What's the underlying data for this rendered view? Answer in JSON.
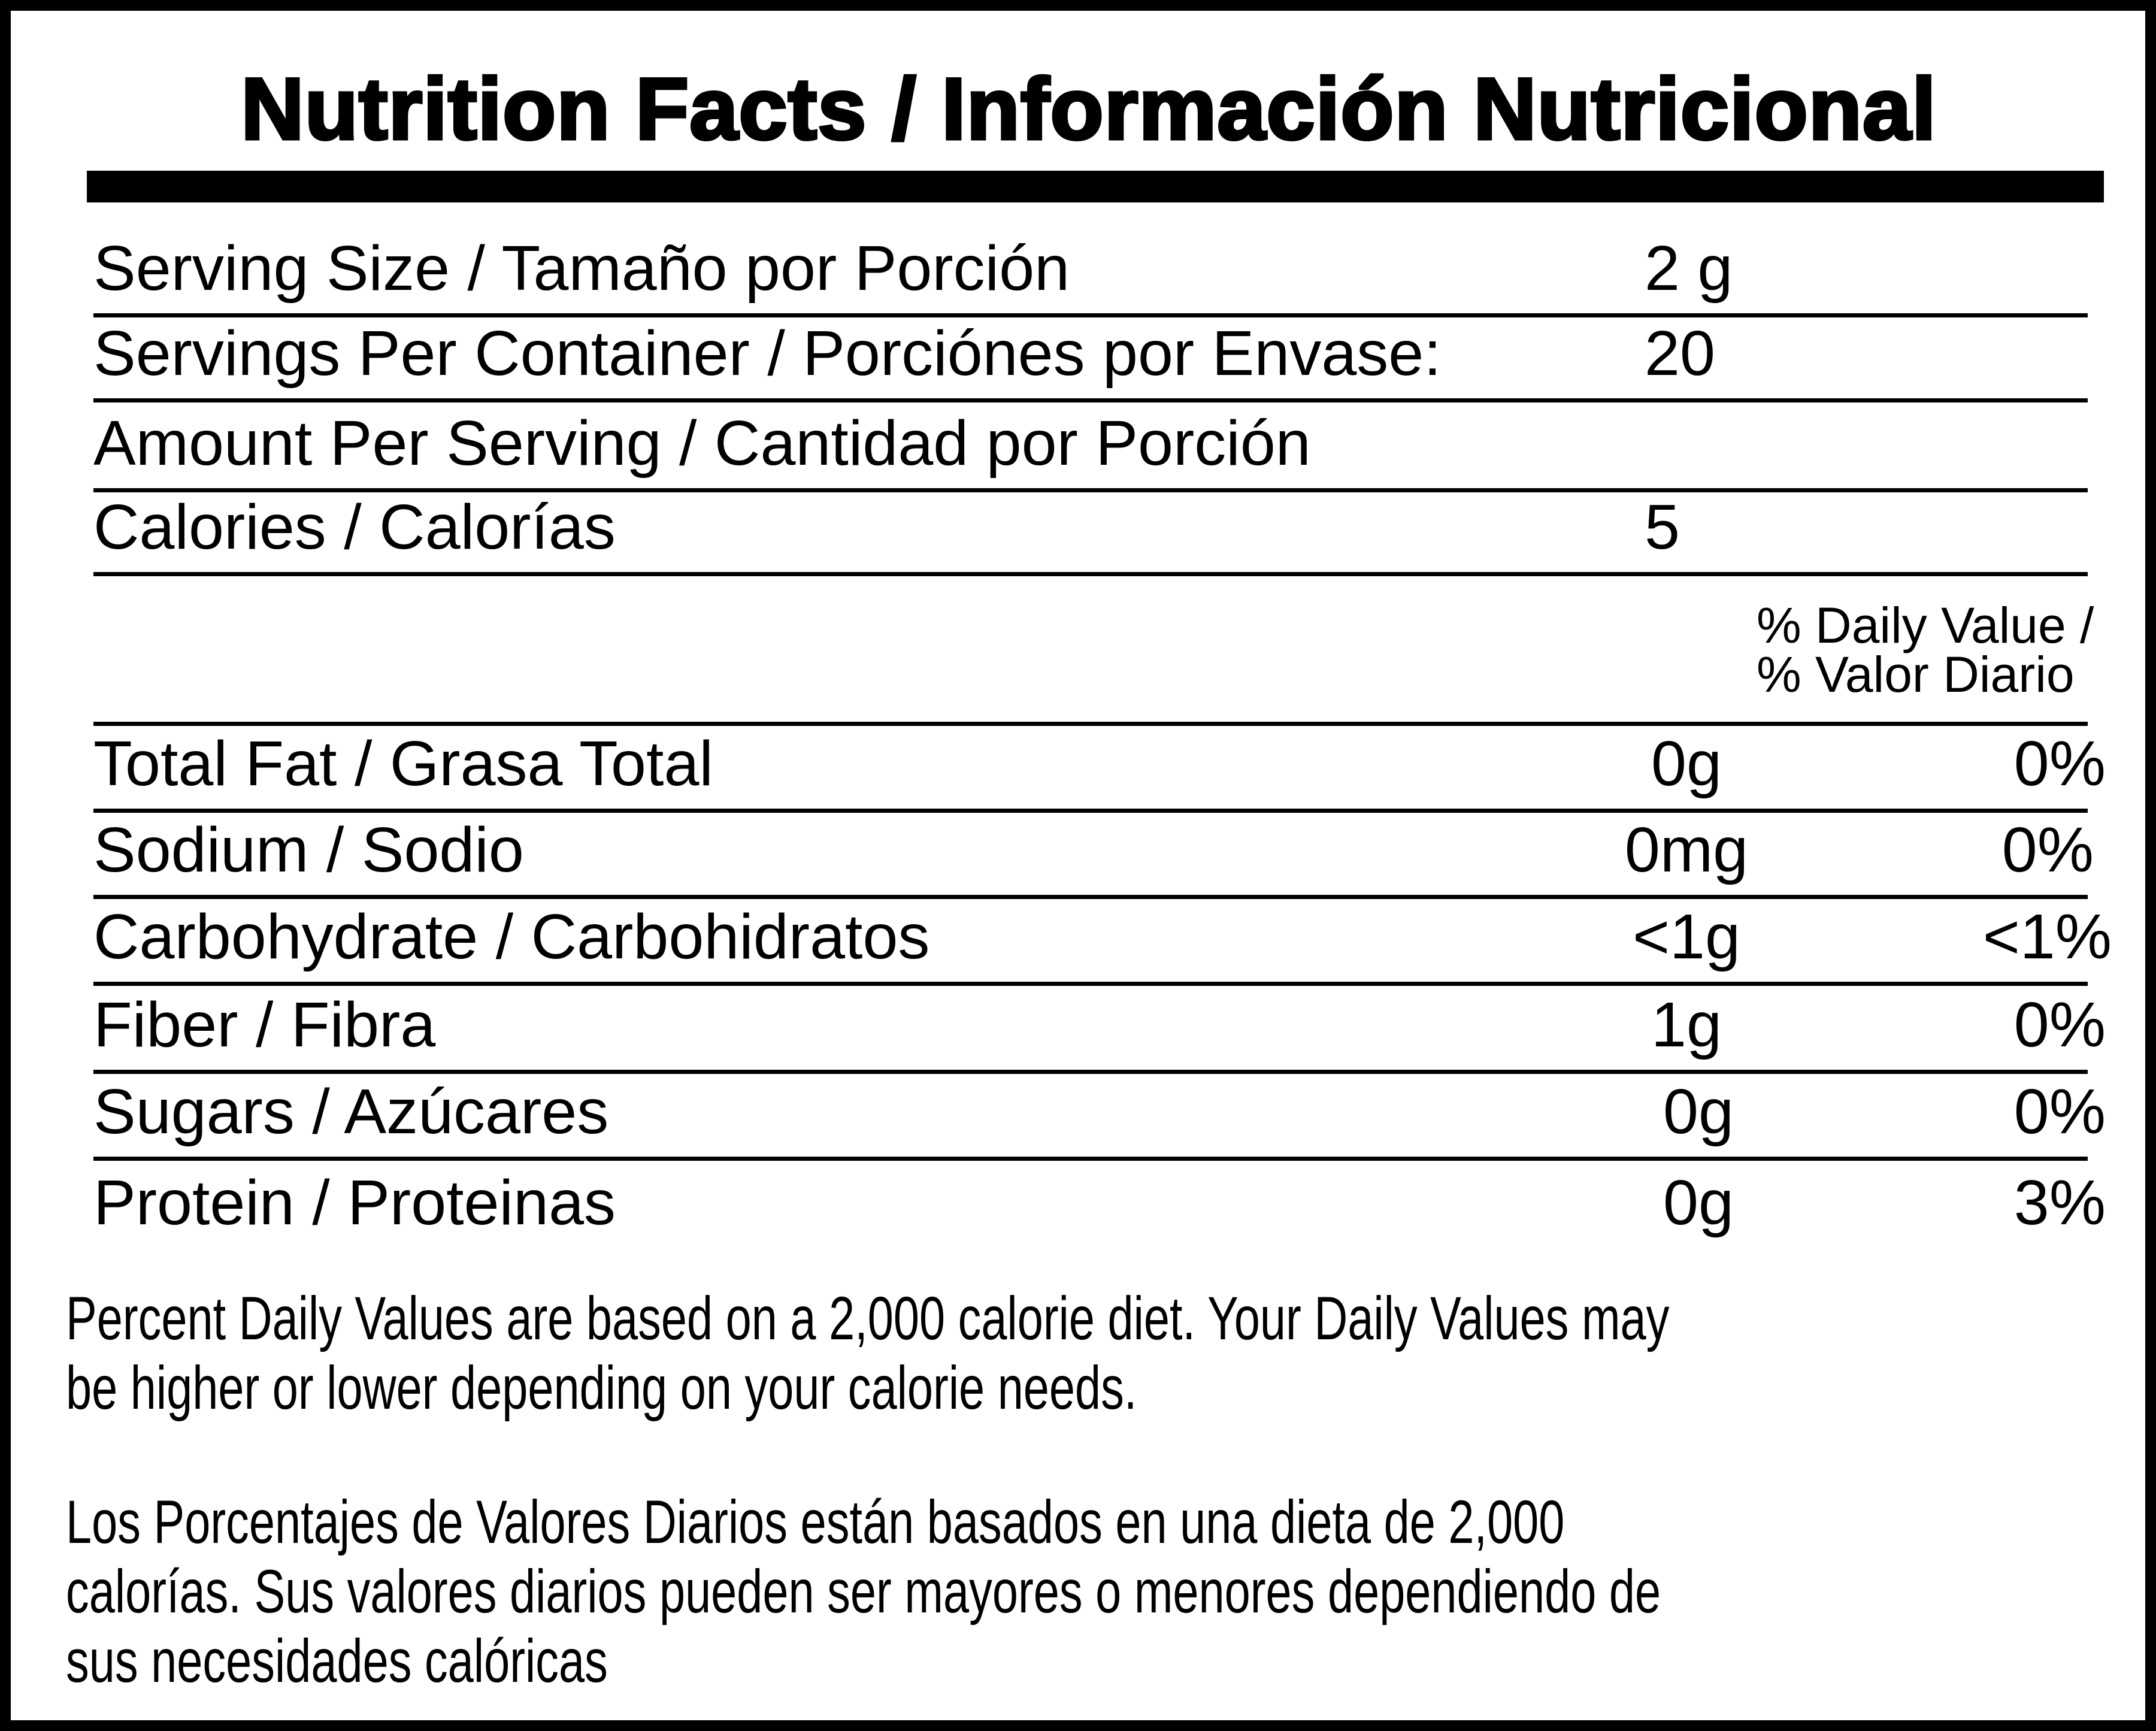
{
  "title": "Nutrition Facts / Información Nutricional",
  "serving_size": {
    "label": "Serving Size / Tamaño por Porción",
    "value": "2 g"
  },
  "servings_per_container": {
    "label": "Servings Per Container / Porciónes por Envase:",
    "value": "20"
  },
  "amount_per_serving": {
    "label": "Amount Per Serving / Cantidad por Porción"
  },
  "calories": {
    "label": "Calories / Calorías",
    "value": "5"
  },
  "daily_value_header": {
    "line1": "% Daily Value /",
    "line2": "% Valor Diario"
  },
  "nutrients": [
    {
      "label": "Total Fat / Grasa Total",
      "amount": "0g",
      "dv": "0%"
    },
    {
      "label": "Sodium / Sodio",
      "amount": "0mg",
      "dv": "0%"
    },
    {
      "label": "Carbohydrate / Carbohidratos",
      "amount": "<1g",
      "dv": "<1%"
    },
    {
      "label": "Fiber / Fibra",
      "amount": "1g",
      "dv": "0%"
    },
    {
      "label": "Sugars / Azúcares",
      "amount": "0g",
      "dv": "0%"
    },
    {
      "label": "Protein / Proteinas",
      "amount": "0g",
      "dv": "3%"
    }
  ],
  "footnote_en": [
    "Percent Daily Values are based on a 2,000 calorie diet. Your Daily Values may",
    "be higher or lower depending on your calorie needs."
  ],
  "footnote_es": [
    "Los Porcentajes de Valores Diarios están basados en una dieta de 2,000",
    "calorías. Sus valores diarios pueden ser mayores o menores dependiendo de",
    "sus necesidades calóricas"
  ]
}
